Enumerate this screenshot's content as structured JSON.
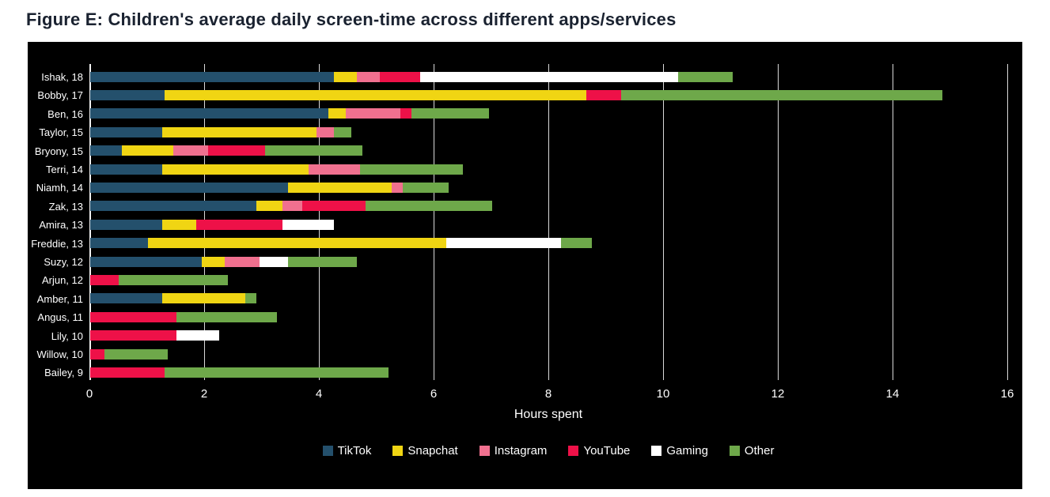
{
  "page": {
    "background": "#ffffff",
    "panel_background": "#000000",
    "text_color": "#ffffff",
    "title_color": "#1a2230"
  },
  "chart_data": {
    "type": "bar",
    "subtype": "horizontal-stacked",
    "title": "Figure E: Children's average daily screen-time across different apps/services",
    "xlabel": "Hours spent",
    "xlim": [
      0,
      16
    ],
    "xticks": [
      0,
      2,
      4,
      6,
      8,
      10,
      12,
      14,
      16
    ],
    "grid": true,
    "legend_position": "bottom-center",
    "series_order": [
      "TikTok",
      "Snapchat",
      "Instagram",
      "YouTube",
      "Gaming",
      "Other"
    ],
    "series_colors": {
      "TikTok": "#24506C",
      "Snapchat": "#F0D513",
      "Instagram": "#F0708F",
      "YouTube": "#EE1148",
      "Gaming": "#FFFFFF",
      "Other": "#6EA84A"
    },
    "rows": [
      {
        "label": "Ishak, 18",
        "values": {
          "TikTok": 4.25,
          "Snapchat": 0.4,
          "Instagram": 0.4,
          "YouTube": 0.7,
          "Gaming": 4.5,
          "Other": 0.95
        }
      },
      {
        "label": "Bobby, 17",
        "values": {
          "TikTok": 1.3,
          "Snapchat": 7.35,
          "Instagram": 0,
          "YouTube": 0.6,
          "Gaming": 0,
          "Other": 5.6
        }
      },
      {
        "label": "Ben, 16",
        "values": {
          "TikTok": 4.15,
          "Snapchat": 0.3,
          "Instagram": 0.95,
          "YouTube": 0.2,
          "Gaming": 0,
          "Other": 1.35
        }
      },
      {
        "label": "Taylor, 15",
        "values": {
          "TikTok": 1.25,
          "Snapchat": 2.7,
          "Instagram": 0.3,
          "YouTube": 0,
          "Gaming": 0,
          "Other": 0.3
        }
      },
      {
        "label": "Bryony, 15",
        "values": {
          "TikTok": 0.55,
          "Snapchat": 0.9,
          "Instagram": 0.6,
          "YouTube": 1.0,
          "Gaming": 0,
          "Other": 1.7
        }
      },
      {
        "label": "Terri, 14",
        "values": {
          "TikTok": 1.25,
          "Snapchat": 2.55,
          "Instagram": 0.9,
          "YouTube": 0,
          "Gaming": 0,
          "Other": 1.8
        }
      },
      {
        "label": "Niamh, 14",
        "values": {
          "TikTok": 3.45,
          "Snapchat": 1.8,
          "Instagram": 0.2,
          "YouTube": 0,
          "Gaming": 0,
          "Other": 0.8
        }
      },
      {
        "label": "Zak, 13",
        "values": {
          "TikTok": 2.9,
          "Snapchat": 0.45,
          "Instagram": 0.35,
          "YouTube": 1.1,
          "Gaming": 0,
          "Other": 2.2
        }
      },
      {
        "label": "Amira, 13",
        "values": {
          "TikTok": 1.25,
          "Snapchat": 0.6,
          "Instagram": 0,
          "YouTube": 1.5,
          "Gaming": 0.9,
          "Other": 0
        }
      },
      {
        "label": "Freddie, 13",
        "values": {
          "TikTok": 1.0,
          "Snapchat": 5.2,
          "Instagram": 0,
          "YouTube": 0,
          "Gaming": 2.0,
          "Other": 0.55
        }
      },
      {
        "label": "Suzy, 12",
        "values": {
          "TikTok": 1.95,
          "Snapchat": 0.4,
          "Instagram": 0.6,
          "YouTube": 0,
          "Gaming": 0.5,
          "Other": 1.2
        }
      },
      {
        "label": "Arjun, 12",
        "values": {
          "TikTok": 0,
          "Snapchat": 0,
          "Instagram": 0,
          "YouTube": 0.5,
          "Gaming": 0,
          "Other": 1.9
        }
      },
      {
        "label": "Amber, 11",
        "values": {
          "TikTok": 1.25,
          "Snapchat": 1.45,
          "Instagram": 0,
          "YouTube": 0,
          "Gaming": 0,
          "Other": 0.2
        }
      },
      {
        "label": "Angus, 11",
        "values": {
          "TikTok": 0,
          "Snapchat": 0,
          "Instagram": 0,
          "YouTube": 1.5,
          "Gaming": 0,
          "Other": 1.75
        }
      },
      {
        "label": "Lily, 10",
        "values": {
          "TikTok": 0,
          "Snapchat": 0,
          "Instagram": 0,
          "YouTube": 1.5,
          "Gaming": 0.75,
          "Other": 0
        }
      },
      {
        "label": "Willow, 10",
        "values": {
          "TikTok": 0,
          "Snapchat": 0,
          "Instagram": 0,
          "YouTube": 0.25,
          "Gaming": 0,
          "Other": 1.1
        }
      },
      {
        "label": "Bailey, 9",
        "values": {
          "TikTok": 0,
          "Snapchat": 0,
          "Instagram": 0,
          "YouTube": 1.3,
          "Gaming": 0,
          "Other": 3.9
        }
      }
    ]
  }
}
